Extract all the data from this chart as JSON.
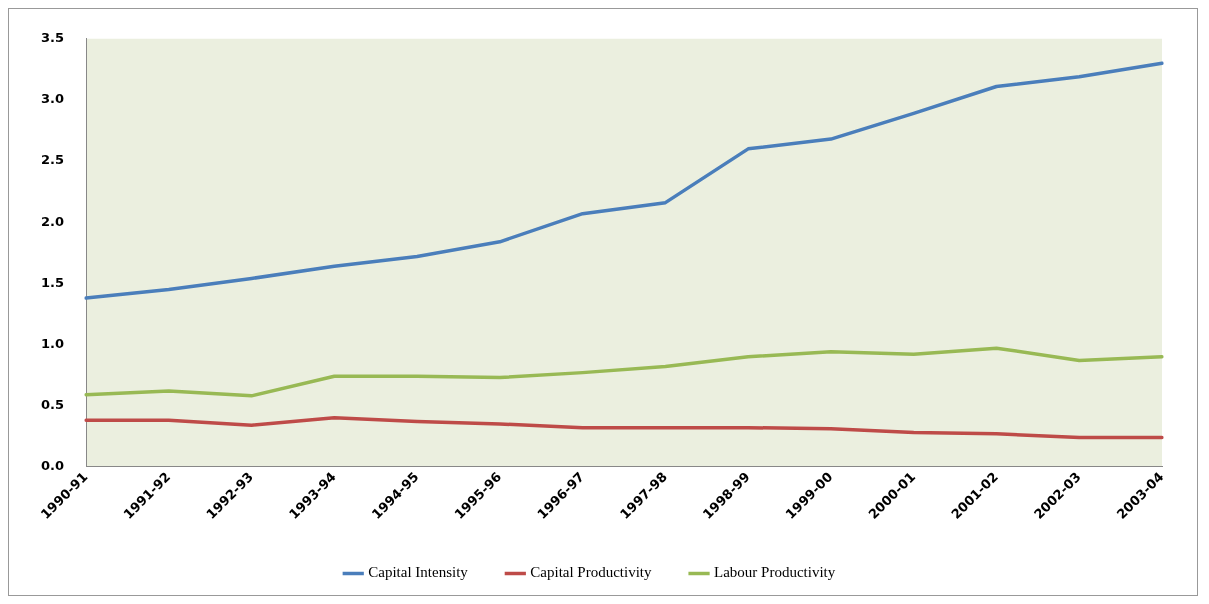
{
  "chart_data": {
    "type": "line",
    "categories": [
      "1990-91",
      "1991-92",
      "1992-93",
      "1993-94",
      "1994-95",
      "1995-96",
      "1996-97",
      "1997-98",
      "1998-99",
      "1999-00",
      "2000-01",
      "2001-02",
      "2002-03",
      "2003-04"
    ],
    "series": [
      {
        "name": "Capital Intensity",
        "color": "#4a7ebb",
        "values": [
          1.38,
          1.45,
          1.54,
          1.64,
          1.72,
          1.84,
          2.07,
          2.16,
          2.6,
          2.68,
          2.89,
          3.11,
          3.19,
          3.3
        ]
      },
      {
        "name": "Capital Productivity",
        "color": "#be4b48",
        "values": [
          0.38,
          0.38,
          0.34,
          0.4,
          0.37,
          0.35,
          0.32,
          0.32,
          0.32,
          0.31,
          0.28,
          0.27,
          0.24,
          0.24
        ]
      },
      {
        "name": "Labour Productivity",
        "color": "#98b954",
        "values": [
          0.59,
          0.62,
          0.58,
          0.74,
          0.74,
          0.73,
          0.77,
          0.82,
          0.9,
          0.94,
          0.92,
          0.97,
          0.87,
          0.9
        ]
      }
    ],
    "ylim": [
      0,
      3.5
    ],
    "yticks": [
      {
        "value": 0,
        "label": "0.0"
      },
      0.5,
      {
        "value": 1,
        "label": "1.0"
      },
      1.5,
      {
        "value": 2,
        "label": "2.0"
      },
      2.5,
      {
        "value": 3,
        "label": "3.0"
      },
      3.5
    ],
    "grid": false,
    "legend": "bottom",
    "marker": "none",
    "line_style": "solid"
  }
}
